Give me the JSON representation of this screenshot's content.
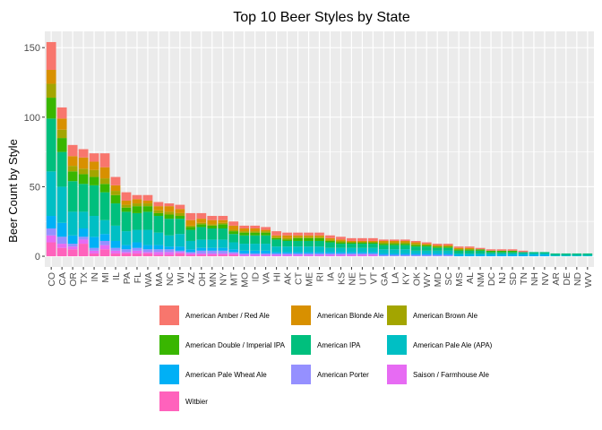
{
  "chart_data": {
    "type": "bar",
    "stacked": true,
    "title": "Top 10 Beer Styles by State",
    "xlabel": "",
    "ylabel": "Beer Count by Style",
    "ylim": [
      0,
      160
    ],
    "yticks": [
      0,
      50,
      100,
      150
    ],
    "grid": true,
    "legend_position": "bottom",
    "categories": [
      "CO",
      "CA",
      "OR",
      "TX",
      "IN",
      "MI",
      "IL",
      "PA",
      "FL",
      "WA",
      "MA",
      "NC",
      "WI",
      "AZ",
      "OH",
      "MN",
      "NY",
      "MT",
      "MO",
      "ID",
      "VA",
      "HI",
      "AK",
      "CT",
      "ME",
      "RI",
      "IA",
      "KS",
      "NE",
      "UT",
      "VT",
      "GA",
      "LA",
      "KY",
      "OK",
      "WY",
      "MD",
      "SC",
      "MS",
      "AL",
      "NM",
      "DC",
      "NJ",
      "SD",
      "TN",
      "NH",
      "NV",
      "AR",
      "DE",
      "ND",
      "WV"
    ],
    "totals": [
      154,
      107,
      80,
      77,
      74,
      74,
      57,
      46,
      44,
      44,
      39,
      38,
      37,
      31,
      31,
      29,
      29,
      25,
      22,
      22,
      21,
      18,
      17,
      17,
      17,
      17,
      15,
      14,
      13,
      13,
      13,
      12,
      12,
      12,
      11,
      10,
      9,
      9,
      7,
      7,
      6,
      5,
      5,
      5,
      4,
      3,
      3,
      2,
      2,
      2,
      2
    ],
    "series": [
      {
        "name": "American Amber / Red Ale",
        "color": "#F8766D"
      },
      {
        "name": "American Blonde Ale",
        "color": "#D89000"
      },
      {
        "name": "American Brown Ale",
        "color": "#A3A500"
      },
      {
        "name": "American Double / Imperial IPA",
        "color": "#39B600"
      },
      {
        "name": "American IPA",
        "color": "#00BF7D"
      },
      {
        "name": "American Pale Ale (APA)",
        "color": "#00BFC4"
      },
      {
        "name": "American Pale Wheat Ale",
        "color": "#00B0F6"
      },
      {
        "name": "American Porter",
        "color": "#9590FF"
      },
      {
        "name": "Saison / Farmhouse Ale",
        "color": "#E76BF3"
      },
      {
        "name": "Witbier",
        "color": "#FF62BC"
      }
    ],
    "stack": [
      [
        20,
        10,
        10,
        15,
        38,
        32,
        9,
        5,
        5,
        10
      ],
      [
        8,
        8,
        6,
        10,
        25,
        26,
        10,
        5,
        3,
        6
      ],
      [
        8,
        7,
        4,
        7,
        22,
        17,
        6,
        2,
        2,
        5
      ],
      [
        6,
        8,
        4,
        7,
        20,
        12,
        6,
        2,
        3,
        9
      ],
      [
        6,
        6,
        5,
        6,
        22,
        15,
        8,
        2,
        2,
        2
      ],
      [
        10,
        8,
        4,
        6,
        20,
        10,
        5,
        3,
        3,
        5
      ],
      [
        6,
        4,
        3,
        6,
        16,
        11,
        5,
        2,
        2,
        2
      ],
      [
        6,
        3,
        2,
        3,
        14,
        10,
        3,
        2,
        1,
        2
      ],
      [
        3,
        3,
        2,
        5,
        12,
        9,
        4,
        2,
        2,
        2
      ],
      [
        4,
        2,
        2,
        4,
        13,
        11,
        3,
        2,
        1,
        2
      ],
      [
        3,
        3,
        2,
        2,
        12,
        9,
        3,
        2,
        2,
        1
      ],
      [
        2,
        4,
        2,
        3,
        12,
        8,
        2,
        2,
        2,
        1
      ],
      [
        3,
        3,
        2,
        2,
        11,
        9,
        3,
        1,
        1,
        2
      ],
      [
        5,
        4,
        1,
        2,
        8,
        6,
        2,
        1,
        1,
        1
      ],
      [
        4,
        3,
        1,
        2,
        9,
        6,
        2,
        2,
        1,
        1
      ],
      [
        3,
        3,
        1,
        2,
        8,
        6,
        2,
        2,
        1,
        1
      ],
      [
        3,
        2,
        1,
        3,
        8,
        6,
        2,
        2,
        1,
        1
      ],
      [
        3,
        3,
        1,
        2,
        6,
        5,
        2,
        1,
        1,
        1
      ],
      [
        2,
        2,
        1,
        2,
        6,
        5,
        2,
        1,
        1,
        0
      ],
      [
        2,
        2,
        1,
        2,
        6,
        5,
        2,
        1,
        1,
        0
      ],
      [
        2,
        1,
        1,
        2,
        6,
        5,
        2,
        1,
        1,
        0
      ],
      [
        3,
        1,
        1,
        1,
        5,
        4,
        1,
        1,
        1,
        0
      ],
      [
        2,
        2,
        1,
        1,
        4,
        4,
        1,
        1,
        1,
        0
      ],
      [
        2,
        1,
        1,
        2,
        4,
        4,
        1,
        1,
        1,
        0
      ],
      [
        2,
        1,
        1,
        2,
        4,
        4,
        1,
        1,
        1,
        0
      ],
      [
        2,
        1,
        1,
        2,
        4,
        4,
        1,
        1,
        1,
        0
      ],
      [
        2,
        1,
        1,
        1,
        4,
        3,
        1,
        1,
        1,
        0
      ],
      [
        2,
        1,
        1,
        1,
        3,
        3,
        1,
        1,
        1,
        0
      ],
      [
        2,
        1,
        0,
        1,
        3,
        3,
        1,
        1,
        1,
        0
      ],
      [
        2,
        1,
        0,
        1,
        3,
        3,
        1,
        1,
        1,
        0
      ],
      [
        2,
        1,
        0,
        1,
        3,
        3,
        1,
        1,
        1,
        0
      ],
      [
        1,
        1,
        1,
        1,
        3,
        3,
        1,
        1,
        0,
        0
      ],
      [
        1,
        1,
        1,
        1,
        3,
        3,
        1,
        1,
        0,
        0
      ],
      [
        1,
        1,
        1,
        1,
        3,
        3,
        1,
        1,
        0,
        0
      ],
      [
        1,
        1,
        1,
        1,
        3,
        2,
        1,
        1,
        0,
        0
      ],
      [
        1,
        1,
        0,
        1,
        3,
        2,
        1,
        1,
        0,
        0
      ],
      [
        1,
        1,
        0,
        1,
        2,
        2,
        1,
        1,
        0,
        0
      ],
      [
        1,
        1,
        0,
        1,
        2,
        2,
        1,
        1,
        0,
        0
      ],
      [
        1,
        1,
        0,
        1,
        2,
        1,
        1,
        0,
        0,
        0
      ],
      [
        1,
        1,
        0,
        1,
        2,
        1,
        1,
        0,
        0,
        0
      ],
      [
        1,
        0,
        0,
        1,
        2,
        1,
        1,
        0,
        0,
        0
      ],
      [
        1,
        0,
        0,
        1,
        1,
        1,
        1,
        0,
        0,
        0
      ],
      [
        1,
        0,
        0,
        1,
        1,
        1,
        1,
        0,
        0,
        0
      ],
      [
        1,
        0,
        0,
        1,
        1,
        1,
        1,
        0,
        0,
        0
      ],
      [
        1,
        0,
        0,
        0,
        1,
        1,
        1,
        0,
        0,
        0
      ],
      [
        0,
        0,
        0,
        0,
        1,
        1,
        1,
        0,
        0,
        0
      ],
      [
        0,
        0,
        0,
        0,
        1,
        1,
        1,
        0,
        0,
        0
      ],
      [
        0,
        0,
        0,
        0,
        1,
        1,
        0,
        0,
        0,
        0
      ],
      [
        0,
        0,
        0,
        0,
        1,
        1,
        0,
        0,
        0,
        0
      ],
      [
        0,
        0,
        0,
        0,
        1,
        1,
        0,
        0,
        0,
        0
      ],
      [
        0,
        0,
        0,
        0,
        1,
        1,
        0,
        0,
        0,
        0
      ]
    ]
  }
}
